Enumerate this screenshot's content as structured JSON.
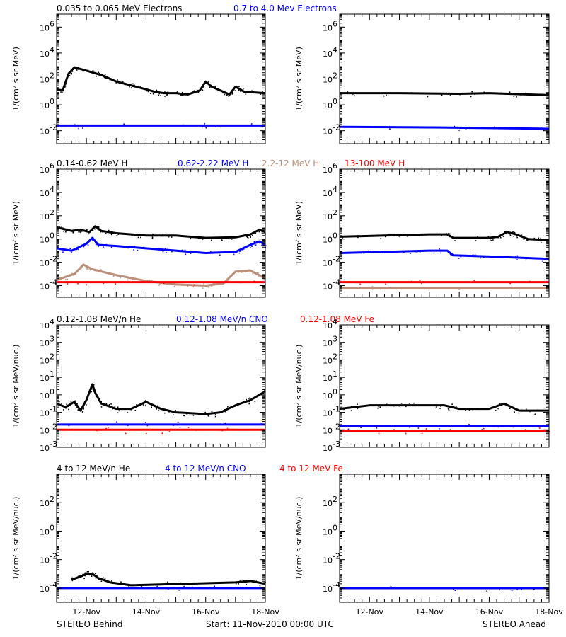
{
  "chart_data": [
    {
      "type": "scatter",
      "panel": "row1-left",
      "legend": [
        {
          "text": "0.035 to 0.065 MeV Electrons",
          "color": "#000000"
        },
        {
          "text": "0.7 to 4.0 Mev Electrons",
          "color": "#0000ff"
        }
      ],
      "ylabel": "1/(cm² s sr MeV)",
      "yscale": "log",
      "ylim": [
        -3,
        7
      ],
      "yticks": [
        {
          "e": -2,
          "label": "10"
        },
        {
          "e": 0,
          "label": "10"
        },
        {
          "e": 2,
          "label": "10"
        },
        {
          "e": 4,
          "label": "10"
        },
        {
          "e": 6,
          "label": "10"
        }
      ],
      "xlim_days": [
        0,
        7
      ],
      "grid": false,
      "series": [
        {
          "color": "#000000",
          "points": [
            [
              0.0,
              1.2
            ],
            [
              0.2,
              1.1
            ],
            [
              0.4,
              2.4
            ],
            [
              0.6,
              2.9
            ],
            [
              0.9,
              2.7
            ],
            [
              1.5,
              2.3
            ],
            [
              2.0,
              1.8
            ],
            [
              2.5,
              1.5
            ],
            [
              3.0,
              1.2
            ],
            [
              3.3,
              1.0
            ],
            [
              3.6,
              0.9
            ],
            [
              4.0,
              0.9
            ],
            [
              4.4,
              0.8
            ],
            [
              4.8,
              1.1
            ],
            [
              5.0,
              1.8
            ],
            [
              5.2,
              1.4
            ],
            [
              5.6,
              1.0
            ],
            [
              5.8,
              0.8
            ],
            [
              6.0,
              1.4
            ],
            [
              6.3,
              1.0
            ],
            [
              7.0,
              0.9
            ]
          ]
        },
        {
          "color": "#0000ff",
          "points": [
            [
              0.0,
              -1.6
            ],
            [
              3.5,
              -1.6
            ],
            [
              7.0,
              -1.6
            ]
          ]
        }
      ]
    },
    {
      "type": "scatter",
      "panel": "row1-right",
      "legend": [],
      "ylabel": "1/(cm² s sr MeV)",
      "yscale": "log",
      "ylim": [
        -3,
        7
      ],
      "yticks": [
        {
          "e": -2,
          "label": "10"
        },
        {
          "e": 0,
          "label": "10"
        },
        {
          "e": 2,
          "label": "10"
        },
        {
          "e": 4,
          "label": "10"
        },
        {
          "e": 6,
          "label": "10"
        }
      ],
      "xlim_days": [
        0,
        7
      ],
      "grid": false,
      "series": [
        {
          "color": "#000000",
          "points": [
            [
              0.0,
              0.9
            ],
            [
              2.0,
              0.9
            ],
            [
              4.0,
              0.85
            ],
            [
              5.0,
              0.9
            ],
            [
              7.0,
              0.75
            ]
          ]
        },
        {
          "color": "#0000ff",
          "points": [
            [
              0.0,
              -1.7
            ],
            [
              3.5,
              -1.75
            ],
            [
              7.0,
              -1.85
            ]
          ]
        }
      ]
    },
    {
      "type": "scatter",
      "panel": "row2-left",
      "legend": [
        {
          "text": "0.14-0.62 MeV H",
          "color": "#000000"
        },
        {
          "text": "0.62-2.22 MeV H",
          "color": "#0000ff"
        },
        {
          "text": "2.2-12 MeV H",
          "color": "#bc8f7a"
        },
        {
          "text": "13-100 MeV H",
          "color": "#ff0000"
        }
      ],
      "ylabel": "1/(cm² s sr MeV)",
      "yscale": "log",
      "ylim": [
        -5,
        6
      ],
      "yticks": [
        {
          "e": -4,
          "label": "10"
        },
        {
          "e": -2,
          "label": "10"
        },
        {
          "e": 0,
          "label": "10"
        },
        {
          "e": 2,
          "label": "10"
        },
        {
          "e": 4,
          "label": "10"
        },
        {
          "e": 6,
          "label": "10"
        }
      ],
      "xlim_days": [
        0,
        7
      ],
      "grid": false,
      "series": [
        {
          "color": "#000000",
          "points": [
            [
              0.0,
              1.0
            ],
            [
              0.5,
              0.7
            ],
            [
              0.8,
              0.8
            ],
            [
              1.1,
              0.6
            ],
            [
              1.3,
              1.1
            ],
            [
              1.5,
              0.7
            ],
            [
              2.0,
              0.5
            ],
            [
              3.0,
              0.3
            ],
            [
              4.0,
              0.3
            ],
            [
              5.0,
              0.1
            ],
            [
              6.0,
              0.15
            ],
            [
              6.5,
              0.4
            ],
            [
              6.8,
              0.8
            ],
            [
              7.0,
              0.6
            ]
          ]
        },
        {
          "color": "#0000ff",
          "points": [
            [
              0.0,
              -0.8
            ],
            [
              0.5,
              -1.0
            ],
            [
              1.0,
              -0.4
            ],
            [
              1.2,
              0.1
            ],
            [
              1.4,
              -0.5
            ],
            [
              2.0,
              -0.6
            ],
            [
              3.0,
              -0.8
            ],
            [
              4.0,
              -1.0
            ],
            [
              5.0,
              -1.2
            ],
            [
              6.0,
              -1.1
            ],
            [
              6.5,
              -0.5
            ],
            [
              6.8,
              -0.2
            ],
            [
              7.0,
              -0.5
            ]
          ]
        },
        {
          "color": "#bc8f7a",
          "points": [
            [
              0.0,
              -3.5
            ],
            [
              0.6,
              -3.0
            ],
            [
              0.9,
              -2.2
            ],
            [
              1.2,
              -2.6
            ],
            [
              2.0,
              -3.1
            ],
            [
              3.0,
              -3.6
            ],
            [
              4.0,
              -3.9
            ],
            [
              5.0,
              -4.0
            ],
            [
              5.6,
              -3.8
            ],
            [
              6.0,
              -2.8
            ],
            [
              6.5,
              -2.7
            ],
            [
              7.0,
              -3.4
            ]
          ]
        },
        {
          "color": "#ff0000",
          "points": [
            [
              0.0,
              -3.7
            ],
            [
              3.5,
              -3.7
            ],
            [
              7.0,
              -3.7
            ]
          ]
        }
      ]
    },
    {
      "type": "scatter",
      "panel": "row2-right",
      "legend": [],
      "ylabel": "1/(cm² s sr MeV)",
      "yscale": "log",
      "ylim": [
        -5,
        6
      ],
      "yticks": [
        {
          "e": -4,
          "label": "10"
        },
        {
          "e": -2,
          "label": "10"
        },
        {
          "e": 0,
          "label": "10"
        },
        {
          "e": 2,
          "label": "10"
        },
        {
          "e": 4,
          "label": "10"
        },
        {
          "e": 6,
          "label": "10"
        }
      ],
      "xlim_days": [
        0,
        7
      ],
      "grid": false,
      "series": [
        {
          "color": "#000000",
          "points": [
            [
              0.0,
              0.2
            ],
            [
              1.5,
              0.3
            ],
            [
              3.0,
              0.4
            ],
            [
              3.6,
              0.4
            ],
            [
              3.8,
              0.1
            ],
            [
              5.0,
              0.1
            ],
            [
              5.3,
              0.2
            ],
            [
              5.6,
              0.6
            ],
            [
              5.9,
              0.4
            ],
            [
              6.3,
              0.0
            ],
            [
              7.0,
              -0.1
            ]
          ]
        },
        {
          "color": "#0000ff",
          "points": [
            [
              0.0,
              -1.2
            ],
            [
              1.5,
              -1.1
            ],
            [
              3.0,
              -1.0
            ],
            [
              3.6,
              -1.0
            ],
            [
              3.8,
              -1.4
            ],
            [
              5.0,
              -1.5
            ],
            [
              7.0,
              -1.7
            ]
          ]
        },
        {
          "color": "#bc8f7a",
          "points": [
            [
              0.0,
              -4.2
            ],
            [
              7.0,
              -4.2
            ]
          ]
        },
        {
          "color": "#ff0000",
          "points": [
            [
              0.0,
              -3.7
            ],
            [
              3.5,
              -3.7
            ],
            [
              7.0,
              -3.7
            ]
          ]
        }
      ]
    },
    {
      "type": "scatter",
      "panel": "row3-left",
      "legend": [
        {
          "text": "0.12-1.08 MeV/n He",
          "color": "#000000"
        },
        {
          "text": "0.12-1.08 MeV/n CNO",
          "color": "#0000ff"
        },
        {
          "text": "0.12-1.08 MeV Fe",
          "color": "#ff0000"
        }
      ],
      "ylabel": "1/(cm² s sr MeV/nuc.)",
      "yscale": "log",
      "ylim": [
        -3,
        4
      ],
      "yticks": [
        {
          "e": -3,
          "label": "10"
        },
        {
          "e": -2,
          "label": "10"
        },
        {
          "e": -1,
          "label": "10"
        },
        {
          "e": 0,
          "label": "10"
        },
        {
          "e": 1,
          "label": "10"
        },
        {
          "e": 2,
          "label": "10"
        },
        {
          "e": 3,
          "label": "10"
        },
        {
          "e": 4,
          "label": "10"
        }
      ],
      "xlim_days": [
        0,
        7
      ],
      "grid": false,
      "series": [
        {
          "color": "#000000",
          "points": [
            [
              0.0,
              -0.5
            ],
            [
              0.3,
              -0.7
            ],
            [
              0.6,
              -0.4
            ],
            [
              0.8,
              -0.9
            ],
            [
              1.0,
              -0.3
            ],
            [
              1.2,
              0.6
            ],
            [
              1.3,
              0.1
            ],
            [
              1.5,
              -0.5
            ],
            [
              2.0,
              -0.8
            ],
            [
              2.5,
              -0.8
            ],
            [
              3.0,
              -0.4
            ],
            [
              3.5,
              -0.8
            ],
            [
              4.0,
              -1.0
            ],
            [
              5.0,
              -1.1
            ],
            [
              5.5,
              -1.0
            ],
            [
              6.0,
              -0.6
            ],
            [
              6.5,
              -0.3
            ],
            [
              7.0,
              0.2
            ]
          ]
        },
        {
          "color": "#0000ff",
          "points": [
            [
              0.0,
              -1.7
            ],
            [
              3.5,
              -1.7
            ],
            [
              7.0,
              -1.7
            ]
          ]
        },
        {
          "color": "#ff0000",
          "points": [
            [
              0.0,
              -2.0
            ],
            [
              3.5,
              -2.0
            ],
            [
              7.0,
              -2.0
            ]
          ]
        }
      ]
    },
    {
      "type": "scatter",
      "panel": "row3-right",
      "legend": [],
      "ylabel": "1/(cm² s sr MeV/nuc.)",
      "yscale": "log",
      "ylim": [
        -3,
        4
      ],
      "yticks": [
        {
          "e": -3,
          "label": "10"
        },
        {
          "e": -2,
          "label": "10"
        },
        {
          "e": -1,
          "label": "10"
        },
        {
          "e": 0,
          "label": "10"
        },
        {
          "e": 1,
          "label": "10"
        },
        {
          "e": 2,
          "label": "10"
        },
        {
          "e": 3,
          "label": "10"
        },
        {
          "e": 4,
          "label": "10"
        }
      ],
      "xlim_days": [
        0,
        7
      ],
      "grid": false,
      "series": [
        {
          "color": "#000000",
          "points": [
            [
              0.0,
              -0.8
            ],
            [
              1.0,
              -0.6
            ],
            [
              2.0,
              -0.6
            ],
            [
              3.0,
              -0.6
            ],
            [
              3.5,
              -0.6
            ],
            [
              4.0,
              -0.8
            ],
            [
              5.0,
              -0.8
            ],
            [
              5.5,
              -0.5
            ],
            [
              6.0,
              -0.9
            ],
            [
              7.0,
              -0.9
            ]
          ]
        },
        {
          "color": "#0000ff",
          "points": [
            [
              0.0,
              -1.8
            ],
            [
              3.5,
              -1.8
            ],
            [
              7.0,
              -1.8
            ]
          ]
        },
        {
          "color": "#ff0000",
          "points": [
            [
              0.0,
              -2.05
            ],
            [
              3.5,
              -2.05
            ],
            [
              7.0,
              -2.05
            ]
          ]
        }
      ]
    },
    {
      "type": "scatter",
      "panel": "row4-left",
      "legend": [
        {
          "text": "4 to 12 MeV/n He",
          "color": "#000000"
        },
        {
          "text": "4 to 12 MeV/n CNO",
          "color": "#0000ff"
        },
        {
          "text": "4 to 12 MeV Fe",
          "color": "#ff0000"
        }
      ],
      "ylabel": "1/(cm² s sr MeV/nuc.)",
      "yscale": "log",
      "ylim": [
        -5,
        4
      ],
      "yticks": [
        {
          "e": -4,
          "label": "10"
        },
        {
          "e": -2,
          "label": "10"
        },
        {
          "e": 0,
          "label": "10"
        },
        {
          "e": 2,
          "label": "10"
        }
      ],
      "xlim_days": [
        0,
        7
      ],
      "grid": false,
      "xticks": [
        {
          "day": 1,
          "label": "12-Nov"
        },
        {
          "day": 3,
          "label": "14-Nov"
        },
        {
          "day": 5,
          "label": "16-Nov"
        },
        {
          "day": 7,
          "label": "18-Nov"
        }
      ],
      "series": [
        {
          "color": "#000000",
          "points": [
            [
              0.5,
              -3.4
            ],
            [
              0.8,
              -3.2
            ],
            [
              1.0,
              -3.0
            ],
            [
              1.2,
              -3.0
            ],
            [
              1.4,
              -3.3
            ],
            [
              1.8,
              -3.6
            ],
            [
              2.5,
              -3.8
            ],
            [
              6.0,
              -3.6
            ],
            [
              6.5,
              -3.5
            ],
            [
              7.0,
              -3.7
            ]
          ]
        },
        {
          "color": "#0000ff",
          "points": [
            [
              0.0,
              -4.0
            ],
            [
              7.0,
              -4.0
            ]
          ]
        }
      ]
    },
    {
      "type": "scatter",
      "panel": "row4-right",
      "legend": [],
      "ylabel": "1/(cm² s sr MeV/nuc.)",
      "yscale": "log",
      "ylim": [
        -5,
        4
      ],
      "yticks": [
        {
          "e": -4,
          "label": "10"
        },
        {
          "e": -2,
          "label": "10"
        },
        {
          "e": 0,
          "label": "10"
        },
        {
          "e": 2,
          "label": "10"
        }
      ],
      "xlim_days": [
        0,
        7
      ],
      "grid": false,
      "xticks": [
        {
          "day": 1,
          "label": "12-Nov"
        },
        {
          "day": 3,
          "label": "14-Nov"
        },
        {
          "day": 5,
          "label": "16-Nov"
        },
        {
          "day": 7,
          "label": "18-Nov"
        }
      ],
      "series": [
        {
          "color": "#000000",
          "points": [
            [
              0.0,
              -4.0
            ],
            [
              7.0,
              -4.0
            ]
          ]
        },
        {
          "color": "#0000ff",
          "points": [
            [
              0.0,
              -4.0
            ],
            [
              7.0,
              -4.0
            ]
          ]
        }
      ]
    }
  ],
  "footer": {
    "left": "STEREO Behind",
    "center": "Start: 11-Nov-2010 00:00 UTC",
    "right": "STEREO Ahead"
  }
}
